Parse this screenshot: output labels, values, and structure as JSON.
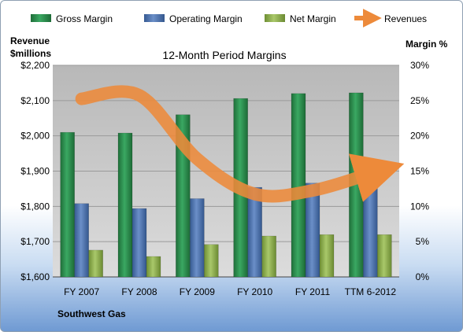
{
  "chart_data": {
    "type": "bar",
    "title": "12-Month Period Margins",
    "company": "Southwest Gas",
    "left_axis_label": [
      "Revenue",
      "$millions"
    ],
    "right_axis_label": "Margin %",
    "categories": [
      "FY 2007",
      "FY 2008",
      "FY 2009",
      "FY 2010",
      "FY 2011",
      "TTM 6-2012"
    ],
    "left_ylim": [
      1600,
      2200
    ],
    "left_ticks": [
      1600,
      1700,
      1800,
      1900,
      2000,
      2100,
      2200
    ],
    "left_tick_labels": [
      "$1,600",
      "$1,700",
      "$1,800",
      "$1,900",
      "$2,000",
      "$2,100",
      "$2,200"
    ],
    "right_ylim": [
      0,
      30
    ],
    "right_ticks": [
      0,
      5,
      10,
      15,
      20,
      25,
      30
    ],
    "right_tick_labels": [
      "0%",
      "5%",
      "10%",
      "15%",
      "20%",
      "25%",
      "30%"
    ],
    "grid": true,
    "legend_position": "top",
    "series": [
      {
        "name": "Gross Margin",
        "kind": "bar",
        "axis": "right",
        "color": "#2e8b4e",
        "values": [
          20.5,
          20.4,
          23.0,
          25.3,
          26.0,
          26.1
        ]
      },
      {
        "name": "Operating Margin",
        "kind": "bar",
        "axis": "right",
        "color": "#4f74b0",
        "values": [
          10.4,
          9.7,
          11.1,
          12.7,
          13.3,
          13.0
        ]
      },
      {
        "name": "Net Margin",
        "kind": "bar",
        "axis": "right",
        "color": "#8fb04f",
        "values": [
          3.8,
          2.9,
          4.6,
          5.8,
          6.0,
          6.0
        ]
      },
      {
        "name": "Revenues",
        "kind": "line",
        "axis": "left",
        "color": "#ed8a3a",
        "values": [
          2105,
          2115,
          1935,
          1835,
          1845,
          1893
        ]
      }
    ]
  }
}
